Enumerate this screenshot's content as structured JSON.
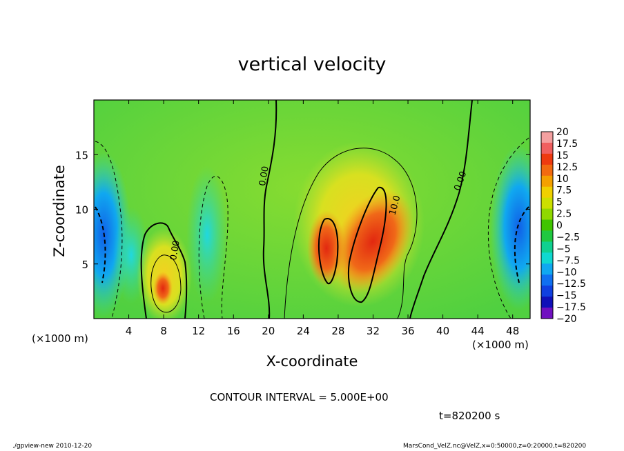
{
  "chart_data": {
    "type": "heatmap",
    "title": "vertical velocity",
    "xlabel": "X-coordinate",
    "ylabel": "Z-coordinate",
    "x_unit_left": "(×1000 m)",
    "x_unit_right": "(×1000 m)",
    "xlim": [
      0,
      50
    ],
    "ylim": [
      0,
      20
    ],
    "x_ticks": [
      4,
      8,
      12,
      16,
      20,
      24,
      28,
      32,
      36,
      40,
      44,
      48
    ],
    "y_ticks": [
      5,
      10,
      15
    ],
    "colorbar": {
      "levels": [
        -20,
        -17.5,
        -15,
        -12.5,
        -10,
        -7.5,
        -5,
        -2.5,
        0,
        2.5,
        5,
        7.5,
        10,
        12.5,
        15,
        17.5,
        20
      ],
      "labels": [
        "20",
        "17.5",
        "15",
        "12.5",
        "10",
        "7.5",
        "5",
        "2.5",
        "0",
        "−2.5",
        "−5",
        "−7.5",
        "−10",
        "−12.5",
        "−15",
        "−17.5",
        "−20"
      ],
      "colors_top_to_bottom": [
        "#f4a0a0",
        "#f06060",
        "#ee3a10",
        "#f26a10",
        "#f4a000",
        "#f0d000",
        "#cce000",
        "#90d800",
        "#40c400",
        "#20c840",
        "#10d090",
        "#10d8d0",
        "#10a8f0",
        "#1070f0",
        "#1040e0",
        "#1010b8",
        "#7010c0"
      ]
    },
    "contour_labels": [
      "0.00",
      "0.00",
      "0.00",
      "10.0"
    ],
    "contour_interval": "CONTOUR INTERVAL = 5.000E+00",
    "time_label": "t=820200 s"
  },
  "footer": {
    "left": "./gpview-new   2010-12-20",
    "right": "MarsCond_VelZ.nc@VelZ,x=0:50000,z=0:20000,t=820200"
  }
}
